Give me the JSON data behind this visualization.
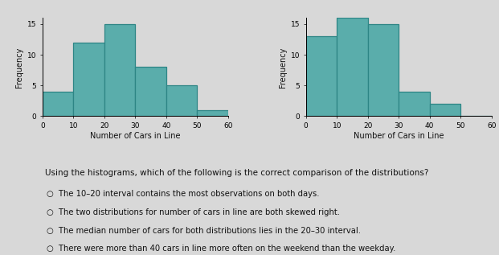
{
  "left_hist": {
    "bins": [
      0,
      10,
      20,
      30,
      40,
      50,
      60
    ],
    "heights": [
      4,
      12,
      15,
      8,
      5,
      1
    ],
    "xlabel": "Number of Cars in Line",
    "ylabel": "Frequency",
    "yticks": [
      0,
      5,
      10,
      15
    ],
    "xticks": [
      0,
      10,
      20,
      30,
      40,
      50,
      60
    ]
  },
  "right_hist": {
    "bins": [
      0,
      10,
      20,
      30,
      40,
      50,
      60
    ],
    "heights": [
      13,
      16,
      15,
      4,
      2,
      0
    ],
    "xlabel": "Number of Cars in Line",
    "ylabel": "Frequency",
    "yticks": [
      0,
      5,
      10,
      15
    ],
    "xticks": [
      0,
      10,
      20,
      30,
      40,
      50,
      60
    ]
  },
  "bar_color": "#5aadab",
  "bar_edge_color": "#2d8585",
  "bg_color": "#d8d8d8",
  "question": "Using the histograms, which of the following is the correct comparison of the distributions?",
  "options": [
    "The 10–20 interval contains the most observations on both days.",
    "The two distributions for number of cars in line are both skewed right.",
    "The median number of cars for both distributions lies in the 20–30 interval.",
    "There were more than 40 cars in line more often on the weekend than the weekday."
  ],
  "text_color": "#111111",
  "question_fontsize": 7.5,
  "option_fontsize": 7.2,
  "axis_label_fontsize": 7,
  "tick_fontsize": 6.5,
  "ylim": [
    0,
    16
  ]
}
